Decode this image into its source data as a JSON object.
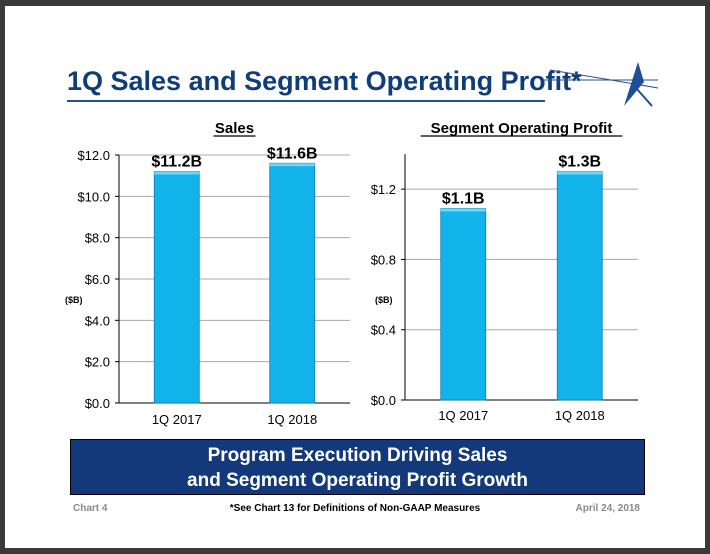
{
  "slide": {
    "title": "1Q Sales and Segment Operating Profit*",
    "banner_line1": "Program Execution Driving Sales",
    "banner_line2": "and Segment Operating Profit Growth",
    "footer_left": "Chart 4",
    "footer_note": "*See Chart 13 for Definitions of Non-GAAP Measures",
    "footer_date": "April 24, 2018"
  },
  "colors": {
    "bar": "#12b2ea",
    "title": "#0f3d7a",
    "banner": "#13397a"
  },
  "chart_data": [
    {
      "type": "bar",
      "title": "Sales",
      "ylabel": "($B)",
      "categories": [
        "1Q 2017",
        "1Q 2018"
      ],
      "values": [
        11.2,
        11.6
      ],
      "data_labels": [
        "$11.2B",
        "$11.6B"
      ],
      "ylim": [
        0,
        12
      ],
      "yticks": [
        0,
        2,
        4,
        6,
        8,
        10,
        12
      ],
      "ytick_labels": [
        "$0.0",
        "$2.0",
        "$4.0",
        "$6.0",
        "$8.0",
        "$10.0",
        "$12.0"
      ],
      "grid": true
    },
    {
      "type": "bar",
      "title": "Segment Operating Profit",
      "ylabel": "($B)",
      "categories": [
        "1Q 2017",
        "1Q 2018"
      ],
      "values": [
        1.09,
        1.3
      ],
      "data_labels": [
        "$1.1B",
        "$1.3B"
      ],
      "ylim": [
        0,
        1.4
      ],
      "yticks": [
        0,
        0.4,
        0.8,
        1.2
      ],
      "ytick_labels": [
        "$0.0",
        "$0.4",
        "$0.8",
        "$1.2"
      ],
      "grid": true
    }
  ]
}
